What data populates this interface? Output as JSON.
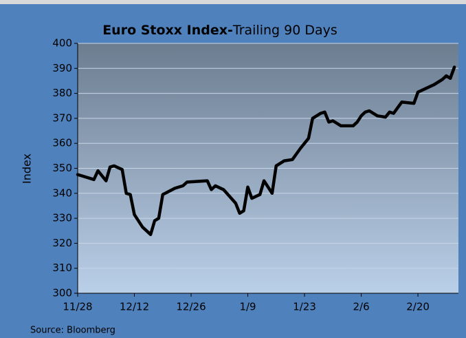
{
  "chart_data": {
    "type": "line",
    "title": [
      "Euro Stoxx Index-",
      "Trailing 90 Days"
    ],
    "y_label": "Index",
    "source": "Source: Bloomberg",
    "x": [
      "11/28",
      "12/2",
      "12/3",
      "12/5",
      "12/6",
      "12/7",
      "12/9",
      "12/10",
      "12/11",
      "12/12",
      "12/14",
      "12/16",
      "12/17",
      "12/18",
      "12/19",
      "12/22",
      "12/24",
      "12/25",
      "12/30",
      "12/31",
      "1/1",
      "1/3",
      "1/6",
      "1/7",
      "1/8",
      "1/9",
      "1/10",
      "1/12",
      "1/13",
      "1/15",
      "1/16",
      "1/18",
      "1/20",
      "1/22",
      "1/24",
      "1/25",
      "1/27",
      "1/28",
      "1/29",
      "1/30",
      "2/1",
      "2/4",
      "2/5",
      "2/6",
      "2/7",
      "2/8",
      "2/10",
      "2/12",
      "2/13",
      "2/14",
      "2/16",
      "2/19",
      "2/20",
      "2/24",
      "2/26",
      "2/27",
      "2/28",
      "3/1"
    ],
    "series": [
      {
        "name": "Euro Stoxx",
        "color": "#000000",
        "values": [
          347.5,
          345.5,
          349,
          345,
          350.5,
          351,
          349.5,
          340,
          339.5,
          331.5,
          326.5,
          323.5,
          329,
          330,
          339.5,
          342,
          343,
          344.5,
          345,
          341.5,
          343,
          341.5,
          336,
          332,
          333,
          342.5,
          338,
          339.5,
          345,
          340,
          351,
          353,
          353.5,
          358,
          362,
          370,
          372,
          372.5,
          368.5,
          369,
          367,
          367,
          368.5,
          371,
          372.5,
          373,
          371,
          370.5,
          372.5,
          372,
          376.5,
          376,
          380.5,
          383.5,
          385.5,
          387,
          386,
          390.5
        ]
      }
    ],
    "xlim": [
      "11/28",
      "3/2"
    ],
    "xticks": [
      "11/28",
      "12/12",
      "12/26",
      "1/9",
      "1/23",
      "2/6",
      "2/20"
    ],
    "ylim": [
      300,
      400
    ],
    "yticks": [
      300,
      310,
      320,
      330,
      340,
      350,
      360,
      370,
      380,
      390,
      400
    ],
    "grid": true
  }
}
